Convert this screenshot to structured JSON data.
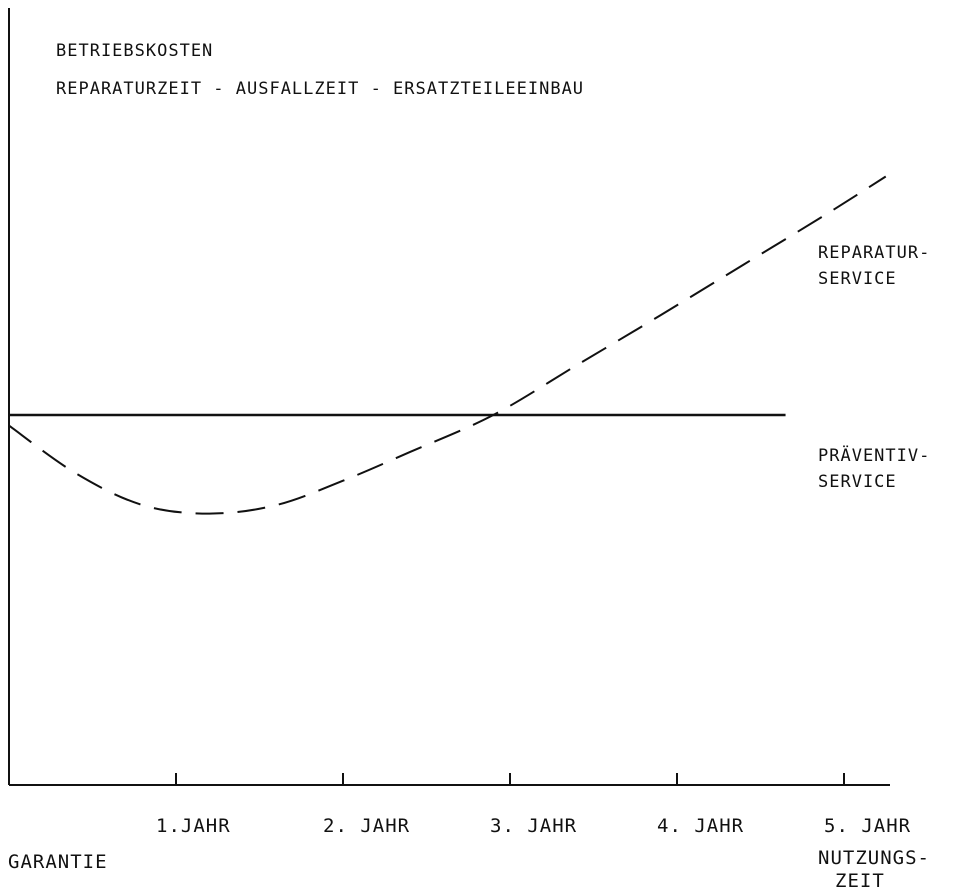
{
  "chart_data": {
    "type": "line",
    "title": "BETRIEBSKOSTEN",
    "subtitle": "REPARATURZEIT - AUSFALLZEIT - ERSATZTEILEEINBAU",
    "x_origin_label": "GARANTIE",
    "x_end_label": [
      "NUTZUNGS-",
      "ZEIT"
    ],
    "x_ticks": [
      {
        "value": 1,
        "label": "1.JAHR"
      },
      {
        "value": 2,
        "label": "2. JAHR"
      },
      {
        "value": 3,
        "label": "3. JAHR"
      },
      {
        "value": 4,
        "label": "4. JAHR"
      },
      {
        "value": 5,
        "label": "5. JAHR"
      }
    ],
    "xlim": [
      0,
      5.3
    ],
    "ylim": [
      -2.2,
      4.0
    ],
    "y_ticks": [],
    "series": [
      {
        "name": "PRÄVENTIV-SERVICE",
        "style": "solid",
        "x": [
          0,
          4.65
        ],
        "y": [
          0,
          0
        ]
      },
      {
        "name": "REPARATUR-SERVICE",
        "style": "dashed",
        "x": [
          0,
          0.4,
          0.8,
          1.2,
          1.6,
          2.0,
          2.4,
          2.9,
          3.4,
          3.9,
          4.4,
          4.9,
          5.25
        ],
        "y": [
          -0.1,
          -0.55,
          -0.85,
          -0.93,
          -0.85,
          -0.62,
          -0.35,
          0.0,
          0.47,
          0.94,
          1.42,
          1.9,
          2.25
        ]
      }
    ],
    "labels": {
      "upper": [
        "REPARATUR-",
        "SERVICE"
      ],
      "lower": [
        "PRÄVENTIV-",
        "SERVICE"
      ]
    },
    "grid": false,
    "legend": "none",
    "colors": {
      "ink": "#111111",
      "background": "#ffffff"
    }
  }
}
